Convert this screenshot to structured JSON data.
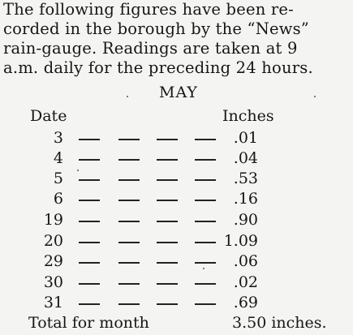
{
  "paragraph": {
    "lines": [
      "The following figures have been re-",
      "corded in the borough by the “News”",
      "rain-gauge. Readings are taken at 9",
      "a.m. daily for the preceding 24 hours."
    ]
  },
  "table": {
    "month": "MAY",
    "headers": {
      "date": "Date",
      "inches": "Inches"
    },
    "rows": [
      {
        "date": "3",
        "inches": ".01"
      },
      {
        "date": "4",
        "inches": ".04"
      },
      {
        "date": "5",
        "inches": ".53"
      },
      {
        "date": "6",
        "inches": ".16"
      },
      {
        "date": "19",
        "inches": ".90"
      },
      {
        "date": "20",
        "inches": "1.09"
      },
      {
        "date": "29",
        "inches": ".06"
      },
      {
        "date": "30",
        "inches": ".02"
      },
      {
        "date": "31",
        "inches": ".69"
      }
    ],
    "total": {
      "label": "Total for month",
      "value": "3.50 inches."
    }
  }
}
